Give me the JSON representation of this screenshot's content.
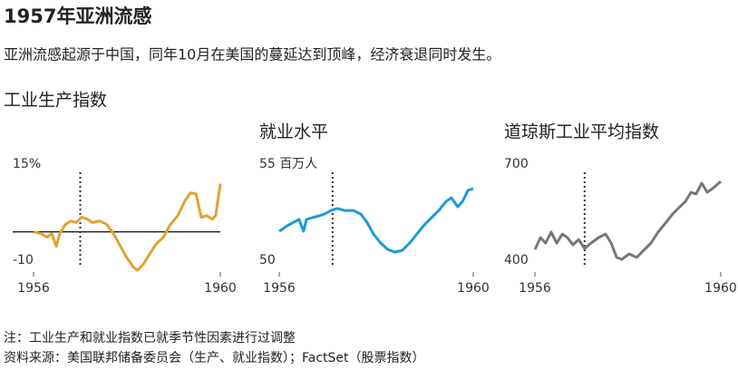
{
  "title": "1957年亚洲流感",
  "subtitle": "亚洲流感起源于中国，同年10月在美国的蔓延达到顶峰，经济衰退同时发生。",
  "notes": [
    "注：工业生产和就业指数已就季节性因素进行过调整",
    "资料来源：美国联邦储备委员会（生产、就业指数）；FactSet（股票指数）"
  ],
  "chart_data": [
    {
      "type": "line",
      "title": "工业生产指数",
      "color": "#e3a12f",
      "x": [
        1956.0,
        1956.16,
        1956.29,
        1956.39,
        1956.49,
        1956.56,
        1956.68,
        1956.8,
        1956.91,
        1957.03,
        1957.15,
        1957.26,
        1957.42,
        1957.57,
        1957.71,
        1957.84,
        1958.0,
        1958.14,
        1958.23,
        1958.35,
        1958.49,
        1958.62,
        1958.78,
        1958.93,
        1959.09,
        1959.24,
        1959.36,
        1959.48,
        1959.59,
        1959.71,
        1959.83,
        1959.9,
        1960.0
      ],
      "values": [
        0,
        -0.5,
        -1.4,
        -0.5,
        -3.8,
        -0.5,
        1.9,
        2.8,
        2.4,
        3.8,
        3.3,
        2.4,
        2.8,
        1.9,
        -0.5,
        -3.3,
        -6.8,
        -9.2,
        -10,
        -8.5,
        -5.7,
        -3.3,
        -1.4,
        1.9,
        4.2,
        8.0,
        10.1,
        9.9,
        3.8,
        4.2,
        3.3,
        4.2,
        12.5
      ],
      "xlim": [
        1956,
        1960
      ],
      "xticks": [
        1956,
        1960
      ],
      "ylim": [
        -10,
        15
      ],
      "yticks": [
        {
          "value": 15,
          "label": "15%"
        },
        -10
      ],
      "zero_line": 0,
      "vline": 1957.0
    },
    {
      "type": "line",
      "title": "就业水平",
      "color": "#1b9ad6",
      "x": [
        1956.0,
        1956.13,
        1956.26,
        1956.41,
        1956.5,
        1956.56,
        1956.69,
        1956.82,
        1956.93,
        1957.07,
        1957.2,
        1957.35,
        1957.53,
        1957.68,
        1957.81,
        1957.94,
        1958.09,
        1958.24,
        1958.39,
        1958.54,
        1958.69,
        1958.84,
        1958.99,
        1959.14,
        1959.29,
        1959.44,
        1959.55,
        1959.68,
        1959.78,
        1959.89,
        1960.0
      ],
      "values": [
        52.03,
        52.26,
        52.45,
        52.64,
        52.03,
        52.64,
        52.74,
        52.83,
        52.92,
        53.11,
        53.21,
        53.11,
        53.11,
        52.92,
        52.5,
        51.89,
        51.42,
        51.08,
        50.94,
        51.04,
        51.42,
        51.89,
        52.36,
        52.74,
        53.11,
        53.58,
        53.77,
        53.3,
        53.58,
        54.15,
        54.25
      ],
      "xlim": [
        1956,
        1960
      ],
      "xticks": [
        1956,
        1960
      ],
      "ylim": [
        50,
        55
      ],
      "yticks": [
        {
          "value": 55,
          "label": "55 百万人"
        },
        50
      ],
      "vline": 1957.1
    },
    {
      "type": "line",
      "title": "道琼斯工业平均指数",
      "color": "#777777",
      "x": [
        1956.0,
        1956.12,
        1956.23,
        1956.35,
        1956.47,
        1956.59,
        1956.7,
        1956.82,
        1956.94,
        1957.07,
        1957.21,
        1957.37,
        1957.52,
        1957.64,
        1957.76,
        1957.87,
        1958.03,
        1958.19,
        1958.34,
        1958.5,
        1958.65,
        1958.81,
        1958.96,
        1959.12,
        1959.24,
        1959.36,
        1959.47,
        1959.59,
        1959.71,
        1959.82,
        1960.0
      ],
      "values": [
        465,
        502,
        485,
        519,
        485,
        513,
        502,
        479,
        496,
        468,
        485,
        502,
        513,
        485,
        440,
        434,
        451,
        440,
        462,
        485,
        519,
        547,
        575,
        598,
        615,
        643,
        638,
        672,
        643,
        655,
        677
      ],
      "xlim": [
        1956,
        1960
      ],
      "xticks": [
        1956,
        1960
      ],
      "ylim": [
        400,
        700
      ],
      "yticks": [
        700,
        400
      ],
      "vline": 1957.07
    }
  ]
}
